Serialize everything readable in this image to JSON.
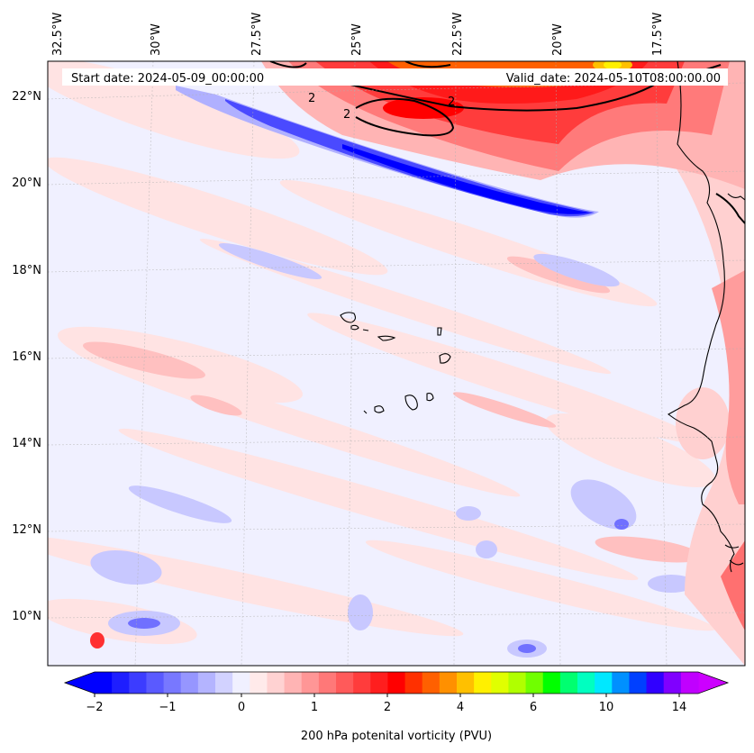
{
  "header": {
    "start_date": "Start date: 2024-05-09_00:00:00",
    "valid_date": "Valid_date: 2024-05-10T08:00:00.00"
  },
  "longitude_labels": [
    "32.5°W",
    "30°W",
    "27.5°W",
    "25°W",
    "22.5°W",
    "20°W",
    "17.5°W"
  ],
  "latitude_labels": [
    "22°N",
    "20°N",
    "18°N",
    "16°N",
    "14°N",
    "12°N",
    "10°N"
  ],
  "contour_labels": [
    "2",
    "2",
    "2"
  ],
  "colorbar": {
    "title": "200 hPa potenital vorticity (PVU)",
    "tick_labels": [
      "−2",
      "−1",
      "0",
      "1",
      "2",
      "4",
      "6",
      "10",
      "14"
    ],
    "colors": [
      "#0000ff",
      "#1e1eff",
      "#3c3cff",
      "#5a5aff",
      "#7878ff",
      "#9696ff",
      "#b4b4ff",
      "#d2d2ff",
      "#f0f0ff",
      "#ffeaea",
      "#ffd2d2",
      "#ffb4b4",
      "#ff9696",
      "#ff7878",
      "#ff5a5a",
      "#ff3c3c",
      "#ff1e1e",
      "#ff0000",
      "#ff3000",
      "#ff6000",
      "#ff9000",
      "#ffc000",
      "#fff000",
      "#e0ff00",
      "#b0ff00",
      "#70ff00",
      "#00ff00",
      "#00ff70",
      "#00ffc0",
      "#00e8ff",
      "#0090ff",
      "#0040ff",
      "#3000ff",
      "#8000ff",
      "#c000ff"
    ],
    "under_color": "#0000ff",
    "over_color": "#cc00ff"
  }
}
